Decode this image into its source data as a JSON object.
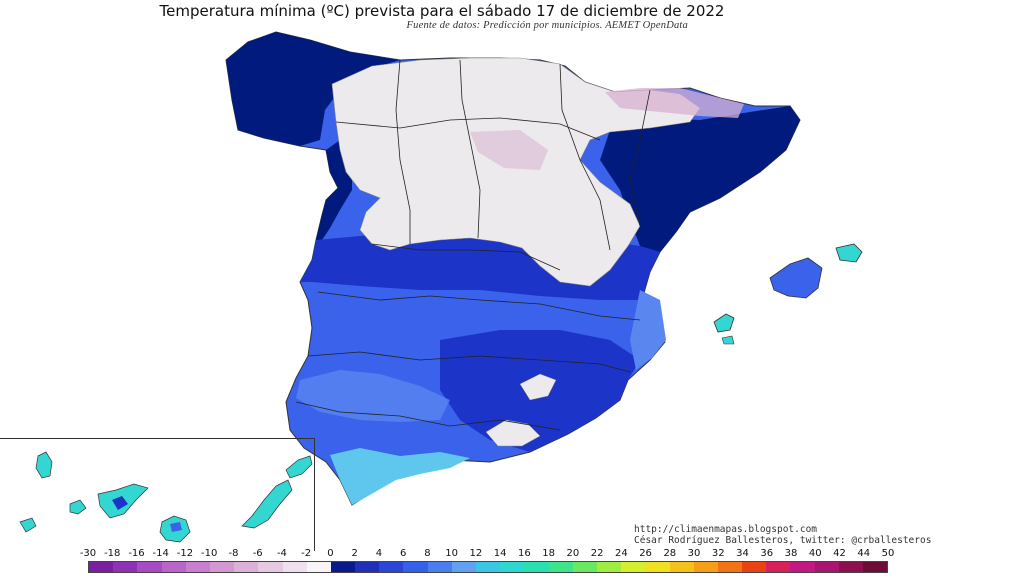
{
  "title": "Temperatura mínima (ºC) prevista para el sábado 17 de diciembre de 2022",
  "subtitle": "Fuente de datos: Predicción por municipios. AEMET OpenData",
  "credits": {
    "site": "http://climaenmapas.blogspot.com",
    "author": "César Rodríguez Ballesteros, twitter: @crballesteros"
  },
  "legend": {
    "ticks": [
      "-30",
      "-18",
      "-16",
      "-14",
      "-12",
      "-10",
      "-8",
      "-6",
      "-4",
      "-2",
      "0",
      "2",
      "4",
      "6",
      "8",
      "10",
      "12",
      "14",
      "16",
      "18",
      "20",
      "22",
      "24",
      "26",
      "28",
      "30",
      "32",
      "34",
      "36",
      "38",
      "40",
      "42",
      "44",
      "50"
    ],
    "colors": [
      "#7a1fa2",
      "#8e32b5",
      "#a64bc4",
      "#b966c9",
      "#c87fcf",
      "#d398d2",
      "#dcb0d8",
      "#e6c8e2",
      "#efe0ee",
      "#f8f5f8",
      "#0a1a8a",
      "#1f2fb8",
      "#2b45d6",
      "#3560ea",
      "#4a7ef0",
      "#62a0f2",
      "#3cc6e6",
      "#2ed8d0",
      "#2ae0b0",
      "#3fe38a",
      "#6ae860",
      "#a0ec40",
      "#d4ef2c",
      "#f0e020",
      "#f5c21c",
      "#f79e18",
      "#f37414",
      "#ea4210",
      "#d8205a",
      "#c21882",
      "#a8146e",
      "#8c1050",
      "#6e0c38"
    ]
  },
  "colors": {
    "snowland": "#eceaec",
    "deep_cold": "#001a7e",
    "cold": "#1c35c8",
    "mild": "#3a62ea",
    "coastal": "#5fc7ee",
    "warm_coast": "#34d6d2",
    "frost": "#d8b2d2"
  }
}
